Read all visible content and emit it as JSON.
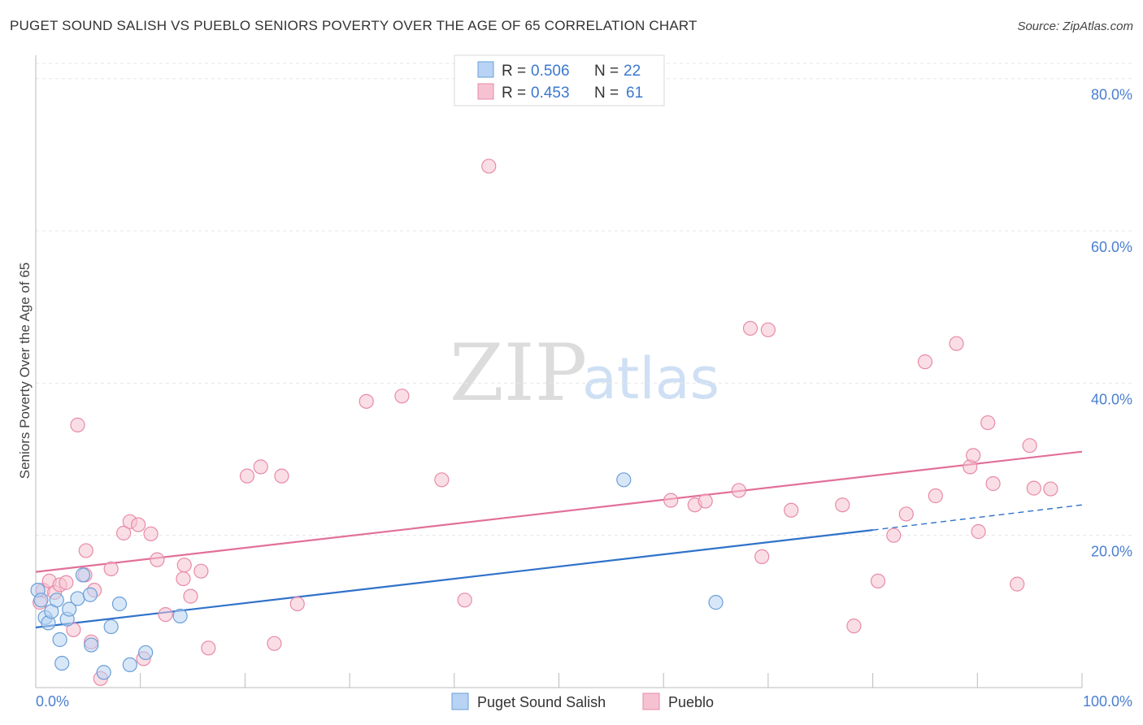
{
  "title": "PUGET SOUND SALISH VS PUEBLO SENIORS POVERTY OVER THE AGE OF 65 CORRELATION CHART",
  "source": "Source: ZipAtlas.com",
  "watermark": {
    "zip": "ZIP",
    "atlas": "atlas"
  },
  "colors": {
    "blue_fill": "#b8d3f3",
    "blue_stroke": "#6a9fd8",
    "blue_line": "#2f72c9",
    "pink_fill": "#f6c2d2",
    "pink_stroke": "#e88aa8",
    "pink_line": "#e2709a",
    "grid": "#e6e6e6",
    "axis_text": "#4a7fd0"
  },
  "legend": {
    "rows": [
      {
        "r_label": "R = ",
        "r_value": "0.506",
        "n_label": "N = ",
        "n_value": "22",
        "color": "#b8d3f3"
      },
      {
        "r_label": "R = ",
        "r_value": "0.453",
        "n_label": "N = ",
        "n_value": "61",
        "color": "#f6c2d2"
      }
    ]
  },
  "chart_data": {
    "type": "scatter",
    "title": "PUGET SOUND SALISH VS PUEBLO SENIORS POVERTY OVER THE AGE OF 65 CORRELATION CHART",
    "xlabel": "",
    "ylabel": "Seniors Poverty Over the Age of 65",
    "xlim": [
      0,
      100
    ],
    "ylim": [
      0,
      82
    ],
    "x_tick_labels": [
      "0.0%",
      "100.0%"
    ],
    "y_ticks": [
      20,
      40,
      60,
      80
    ],
    "y_tick_labels": [
      "20.0%",
      "40.0%",
      "60.0%",
      "80.0%"
    ],
    "grid": true,
    "legend_position": "top-center",
    "series": [
      {
        "name": "Puget Sound Salish",
        "r": 0.506,
        "n": 22,
        "trend": {
          "x0": 0,
          "y0": 7.9,
          "x1": 80,
          "y1": 20.7,
          "dash_to_x": 100,
          "dash_to_y": 24.0
        },
        "points": [
          [
            0.2,
            12.8
          ],
          [
            0.5,
            11.5
          ],
          [
            0.9,
            9.2
          ],
          [
            1.2,
            8.5
          ],
          [
            1.5,
            10.0
          ],
          [
            2.0,
            11.5
          ],
          [
            2.3,
            6.3
          ],
          [
            2.5,
            3.2
          ],
          [
            3.0,
            9.0
          ],
          [
            3.2,
            10.3
          ],
          [
            4.0,
            11.7
          ],
          [
            4.5,
            14.8
          ],
          [
            5.2,
            12.2
          ],
          [
            5.3,
            5.6
          ],
          [
            6.5,
            2.0
          ],
          [
            7.2,
            8.0
          ],
          [
            8.0,
            11.0
          ],
          [
            9.0,
            3.0
          ],
          [
            10.5,
            4.6
          ],
          [
            13.8,
            9.4
          ],
          [
            56.2,
            27.3
          ],
          [
            65.0,
            11.2
          ]
        ]
      },
      {
        "name": "Pueblo",
        "r": 0.453,
        "n": 61,
        "trend": {
          "x0": 0,
          "y0": 15.2,
          "x1": 100,
          "y1": 31.0
        },
        "points": [
          [
            0.4,
            11.2
          ],
          [
            0.7,
            12.8
          ],
          [
            1.3,
            14.0
          ],
          [
            1.8,
            12.5
          ],
          [
            2.3,
            13.5
          ],
          [
            2.9,
            13.8
          ],
          [
            3.6,
            7.6
          ],
          [
            4.0,
            34.5
          ],
          [
            4.7,
            14.8
          ],
          [
            4.8,
            18.0
          ],
          [
            5.3,
            6.0
          ],
          [
            5.6,
            12.8
          ],
          [
            6.2,
            1.2
          ],
          [
            7.2,
            15.6
          ],
          [
            8.4,
            20.3
          ],
          [
            9.0,
            21.8
          ],
          [
            9.8,
            21.4
          ],
          [
            10.3,
            3.8
          ],
          [
            11.0,
            20.2
          ],
          [
            11.6,
            16.8
          ],
          [
            12.4,
            9.6
          ],
          [
            14.1,
            14.3
          ],
          [
            14.2,
            16.1
          ],
          [
            14.8,
            12.0
          ],
          [
            15.8,
            15.3
          ],
          [
            16.5,
            5.2
          ],
          [
            20.2,
            27.8
          ],
          [
            21.5,
            29.0
          ],
          [
            22.8,
            5.8
          ],
          [
            23.5,
            27.8
          ],
          [
            25.0,
            11.0
          ],
          [
            31.6,
            37.6
          ],
          [
            35.0,
            38.3
          ],
          [
            38.8,
            27.3
          ],
          [
            41.0,
            11.5
          ],
          [
            43.3,
            68.5
          ],
          [
            60.7,
            24.6
          ],
          [
            63.0,
            24.0
          ],
          [
            64.0,
            24.5
          ],
          [
            67.2,
            25.9
          ],
          [
            68.3,
            47.2
          ],
          [
            69.4,
            17.2
          ],
          [
            70.0,
            47.0
          ],
          [
            72.2,
            23.3
          ],
          [
            77.1,
            24.0
          ],
          [
            78.2,
            8.1
          ],
          [
            80.5,
            14.0
          ],
          [
            82.0,
            20.0
          ],
          [
            83.2,
            22.8
          ],
          [
            85.0,
            42.8
          ],
          [
            86.0,
            25.2
          ],
          [
            88.0,
            45.2
          ],
          [
            89.3,
            29.0
          ],
          [
            89.6,
            30.5
          ],
          [
            90.1,
            20.5
          ],
          [
            91.0,
            34.8
          ],
          [
            91.5,
            26.8
          ],
          [
            93.8,
            13.6
          ],
          [
            95.0,
            31.8
          ],
          [
            95.4,
            26.2
          ],
          [
            97.0,
            26.1
          ]
        ]
      }
    ]
  }
}
